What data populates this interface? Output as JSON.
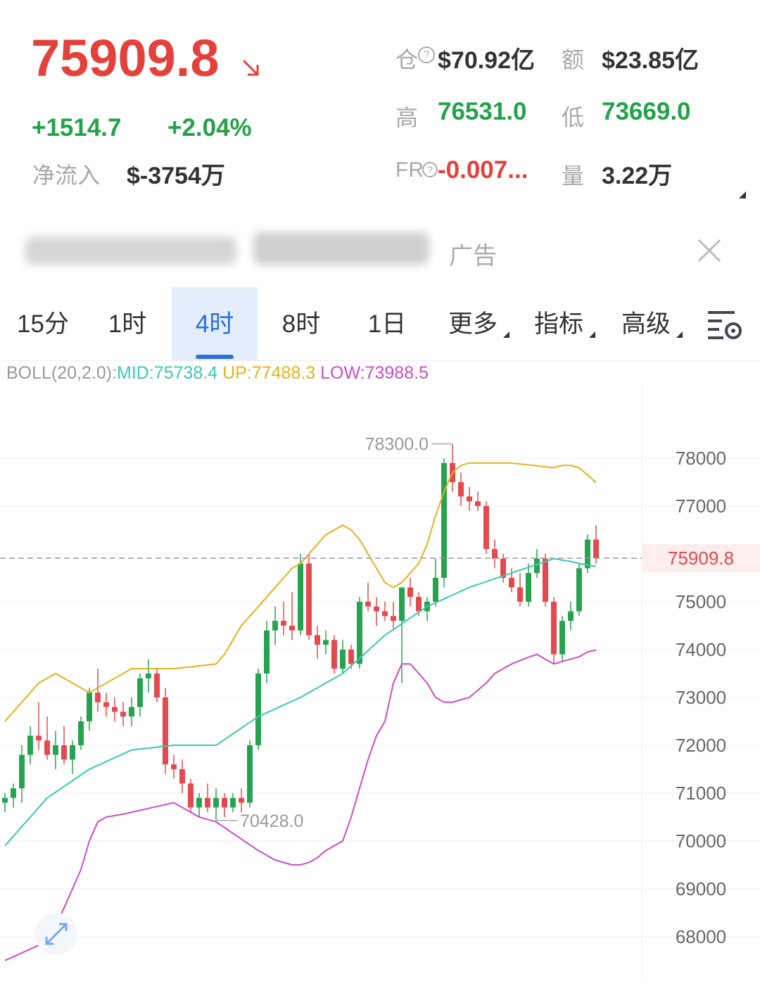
{
  "header": {
    "price": "75909.8",
    "change": "+1514.7",
    "change_pct": "+2.04%",
    "inflow_label": "净流入",
    "inflow": "$-3754万",
    "stats": [
      {
        "label": "仓",
        "value": "$70.92亿"
      },
      {
        "label": "额",
        "value": "$23.85亿"
      },
      {
        "label": "高",
        "value": "76531.0"
      },
      {
        "label": "低",
        "value": "73669.0"
      },
      {
        "label": "FR",
        "value": "-0.007..."
      },
      {
        "label": "量",
        "value": "3.22万"
      }
    ]
  },
  "ad": {
    "label": "广告"
  },
  "tabs": [
    "15分",
    "1时",
    "4时",
    "8时",
    "1日",
    "更多",
    "指标",
    "高级"
  ],
  "indicator": {
    "name": "BOLL(20,2.0):",
    "mid": "MID:75738.4",
    "up": "UP:77488.3",
    "low": "LOW:73988.5"
  },
  "chart_data": {
    "type": "candlestick",
    "open": [
      70800,
      70900,
      71100,
      71800,
      72200,
      72100,
      71800,
      72000,
      71700,
      72000,
      72500,
      73100,
      72900,
      72800,
      72700,
      72600,
      72800,
      73400,
      73500,
      73000,
      71600,
      71500,
      71200,
      70700,
      70900,
      70700,
      70900,
      70700,
      70900,
      70800,
      72000,
      73500,
      74400,
      74600,
      74500,
      74400,
      75800,
      74300,
      74100,
      74200,
      73600,
      74000,
      73700,
      75000,
      74900,
      74800,
      74700,
      74600,
      75300,
      75100,
      74800,
      75000,
      75500,
      77900,
      77500,
      77200,
      77100,
      77000,
      76100,
      75900,
      75500,
      75300,
      75000,
      75600,
      75900,
      75000,
      73900,
      74600,
      74800,
      75700,
      76300
    ],
    "high": [
      71000,
      71200,
      72000,
      72400,
      72900,
      72600,
      72300,
      72400,
      72100,
      72600,
      73200,
      73600,
      73100,
      73000,
      72900,
      73000,
      73500,
      73800,
      73600,
      73200,
      71800,
      71700,
      71300,
      71000,
      71200,
      71100,
      71000,
      71000,
      71100,
      72100,
      73600,
      74600,
      74900,
      75000,
      75200,
      76000,
      76000,
      74500,
      74400,
      74300,
      74200,
      74100,
      75100,
      75400,
      75100,
      75000,
      75000,
      75300,
      75500,
      75200,
      75100,
      75900,
      78000,
      78300,
      77700,
      77400,
      77300,
      77100,
      76300,
      76000,
      75700,
      75600,
      75800,
      76100,
      76000,
      75100,
      74700,
      75000,
      75800,
      76400,
      76600
    ],
    "low": [
      70600,
      70700,
      70800,
      71600,
      71900,
      71700,
      71500,
      71600,
      71400,
      71900,
      72300,
      72700,
      72600,
      72500,
      72400,
      72400,
      72600,
      73100,
      72900,
      71400,
      71300,
      71000,
      70600,
      70500,
      70600,
      70428,
      70500,
      70600,
      70600,
      70700,
      71900,
      73300,
      74100,
      74300,
      74200,
      74300,
      74200,
      73800,
      73900,
      73500,
      73500,
      73600,
      73600,
      74800,
      74500,
      74600,
      74400,
      73300,
      74900,
      74700,
      74600,
      74900,
      75300,
      77300,
      77000,
      76900,
      76900,
      76000,
      75700,
      75400,
      75200,
      74900,
      74900,
      75500,
      74900,
      73700,
      73750,
      74400,
      74700,
      75600,
      75800
    ],
    "close": [
      70900,
      71100,
      71800,
      72200,
      72100,
      71800,
      72000,
      71700,
      72000,
      72500,
      73100,
      72900,
      72800,
      72700,
      72600,
      72800,
      73400,
      73500,
      73000,
      71600,
      71500,
      71200,
      70700,
      70900,
      70700,
      70900,
      70700,
      70900,
      70800,
      72000,
      73500,
      74400,
      74600,
      74500,
      74400,
      75800,
      74300,
      74100,
      74200,
      73600,
      74000,
      73700,
      75000,
      74900,
      74800,
      74700,
      74600,
      75300,
      75100,
      74800,
      75000,
      75500,
      77900,
      77500,
      77200,
      77100,
      77000,
      76100,
      75900,
      75500,
      75300,
      75000,
      75600,
      75900,
      75000,
      73900,
      74600,
      74800,
      75700,
      76300,
      75909.8
    ],
    "up_color": "#27a34f",
    "down_color": "#e34a4f",
    "bands": [
      {
        "name": "MID",
        "color": "#3cc8b4",
        "values": [
          69900,
          70100,
          70300,
          70500,
          70700,
          70900,
          71020,
          71140,
          71260,
          71380,
          71500,
          71580,
          71660,
          71740,
          71820,
          71900,
          71920,
          71940,
          71960,
          71980,
          72000,
          72000,
          72000,
          72000,
          72000,
          72000,
          72120,
          72240,
          72360,
          72480,
          72600,
          72680,
          72760,
          72840,
          72920,
          73000,
          73100,
          73200,
          73300,
          73400,
          73500,
          73660,
          73820,
          73980,
          74140,
          74300,
          74420,
          74540,
          74660,
          74780,
          74900,
          74980,
          75060,
          75140,
          75220,
          75300,
          75360,
          75420,
          75480,
          75540,
          75600,
          75660,
          75720,
          75780,
          75840,
          75900,
          75870,
          75840,
          75800,
          75770,
          75738.4
        ]
      },
      {
        "name": "UP",
        "color": "#e2b21c",
        "values": [
          72500,
          72700,
          72900,
          73100,
          73300,
          73400,
          73500,
          73400,
          73300,
          73200,
          73100,
          73200,
          73300,
          73400,
          73500,
          73600,
          73600,
          73600,
          73600,
          73600,
          73600,
          73620,
          73640,
          73660,
          73680,
          73700,
          73900,
          74200,
          74500,
          74700,
          74900,
          75100,
          75300,
          75500,
          75700,
          75800,
          76000,
          76200,
          76400,
          76500,
          76600,
          76500,
          76300,
          76000,
          75700,
          75400,
          75300,
          75400,
          75600,
          75800,
          76200,
          76800,
          77300,
          77700,
          77850,
          77900,
          77900,
          77900,
          77900,
          77900,
          77900,
          77880,
          77860,
          77840,
          77820,
          77800,
          77850,
          77850,
          77800,
          77650,
          77488.3
        ]
      },
      {
        "name": "LOW",
        "color": "#c94fc2",
        "values": [
          67500,
          67580,
          67660,
          67740,
          67820,
          67900,
          68200,
          68600,
          69000,
          69400,
          70000,
          70400,
          70500,
          70530,
          70560,
          70600,
          70640,
          70680,
          70720,
          70760,
          70800,
          70700,
          70600,
          70500,
          70450,
          70400,
          70280,
          70160,
          70040,
          69920,
          69800,
          69700,
          69600,
          69550,
          69500,
          69500,
          69550,
          69650,
          69800,
          69900,
          70000,
          70500,
          71100,
          71700,
          72200,
          72500,
          73300,
          73700,
          73700,
          73500,
          73300,
          73000,
          72900,
          72900,
          72950,
          73000,
          73150,
          73300,
          73500,
          73600,
          73700,
          73770,
          73840,
          73900,
          73800,
          73700,
          73750,
          73800,
          73850,
          73950,
          73988.5
        ]
      }
    ],
    "ylim": [
      67130,
      79560
    ],
    "yticks": [
      68000,
      69000,
      70000,
      71000,
      72000,
      73000,
      74000,
      75000,
      76000,
      77000,
      78000
    ],
    "grid": true,
    "annotations": [
      {
        "index": 53,
        "value": 78300,
        "label": "78300.0"
      },
      {
        "index": 25,
        "value": 70428,
        "label": "70428.0"
      }
    ],
    "last_price": {
      "value": 75909.8,
      "label": "75909.8"
    }
  }
}
